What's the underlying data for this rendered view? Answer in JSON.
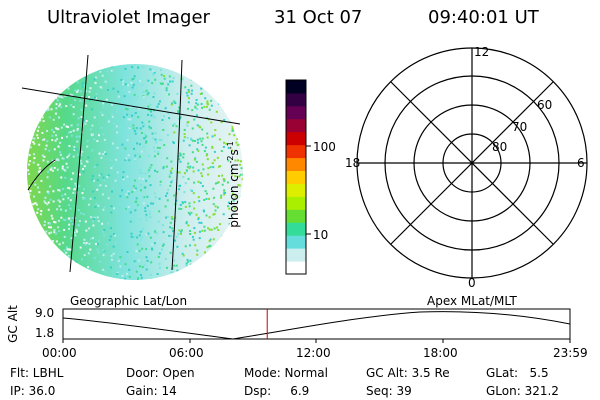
{
  "header": {
    "instrument": "Ultraviolet Imager",
    "date": "31 Oct 07",
    "time": "09:40:01 UT"
  },
  "colorbar": {
    "label": "photon cm^-2s^-1",
    "label_base": "photon cm",
    "label_exp1": "-2",
    "label_s": "s",
    "label_exp2": "-1",
    "tick_100": "100",
    "tick_10": "10",
    "colors": [
      "#ffffff",
      "#cceeee",
      "#66dddd",
      "#33dd99",
      "#66dd33",
      "#aaee00",
      "#ddee00",
      "#ffcc00",
      "#ff8800",
      "#ee3300",
      "#cc0000",
      "#990033",
      "#660055",
      "#330044",
      "#000022"
    ]
  },
  "polar_plot": {
    "mlt_top": "12",
    "mlt_left": "18",
    "mlt_right": "6",
    "mlt_bottom": "0",
    "lat_60": "60",
    "lat_70": "70",
    "lat_80": "80"
  },
  "timeline": {
    "axis_title": "GC Alt",
    "y_max": "9.0",
    "y_min": "1.8",
    "left_label": "Geographic Lat/Lon",
    "right_label": "Apex MLat/MLT",
    "ticks": [
      "00:00",
      "06:00",
      "12:00",
      "18:00",
      "23:59"
    ],
    "current_time_fraction": 0.4028
  },
  "info": {
    "flt": "Flt: LBHL",
    "door": "Door: Open",
    "mode": "Mode: Normal",
    "gc_alt": "GC Alt: 3.5 Re",
    "glat": "GLat:   5.5",
    "ip": "IP: 36.0",
    "gain": "Gain: 14",
    "dsp": "Dsp:     6.9",
    "seq": "Seq: 39",
    "glon": "GLon: 321.2"
  },
  "colors": {
    "marker": "#cc0000"
  }
}
